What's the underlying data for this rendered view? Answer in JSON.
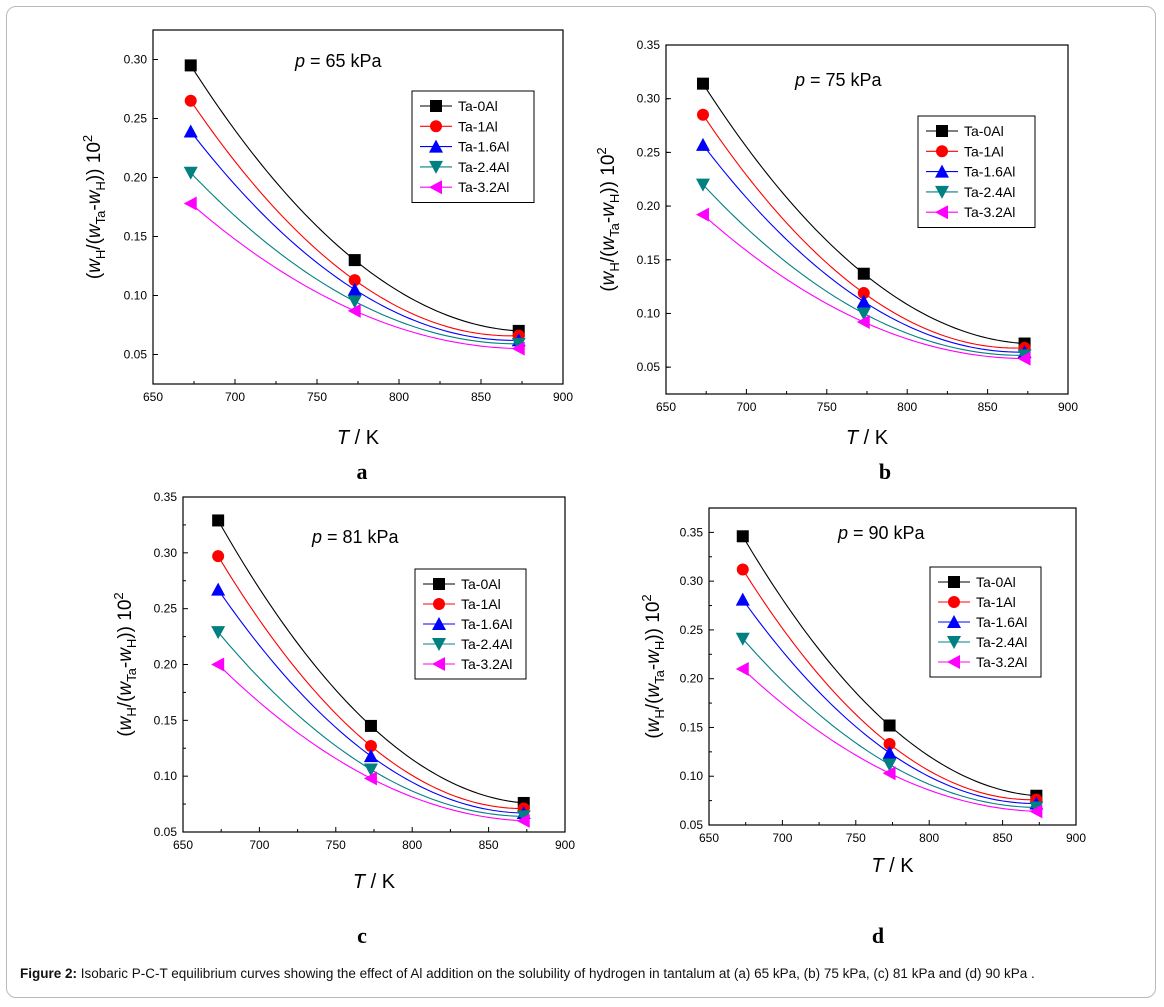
{
  "caption": {
    "label": "Figure 2:",
    "text": " Isobaric P-C-T equilibrium curves showing the effect of Al addition on the solubility of hydrogen in tantalum at (a) 65 kPa, (b) 75 kPa, (c) 81 kPa and (d) 90 kPa ."
  },
  "colors": {
    "Ta-0Al": "#000000",
    "Ta-1Al": "#ff0000",
    "Ta-1.6Al": "#0000ff",
    "Ta-2.4Al": "#008080",
    "Ta-3.2Al": "#ff00ff"
  },
  "chart_data": [
    {
      "type": "line",
      "panel": "a",
      "title_p": "p",
      "title_rest": " = 65 kPa",
      "xlabel_var": "T",
      "xlabel_unit": " / K",
      "ylabel_parts": [
        "(w",
        "H",
        "/(w",
        "Ta",
        "-w",
        "H",
        ")) 10",
        "2"
      ],
      "xlim": [
        650,
        900
      ],
      "ylim": [
        0.025,
        0.325
      ],
      "xticks": [
        "650",
        "700",
        "750",
        "800",
        "850",
        "900"
      ],
      "yticks": [
        "0.05",
        "0.10",
        "0.15",
        "0.20",
        "0.25",
        "0.30"
      ],
      "x": [
        673,
        773,
        873
      ],
      "series": [
        {
          "name": "Ta-0Al",
          "marker": "square",
          "values": [
            0.295,
            0.13,
            0.07
          ]
        },
        {
          "name": "Ta-1Al",
          "marker": "circle",
          "values": [
            0.265,
            0.113,
            0.066
          ]
        },
        {
          "name": "Ta-1.6Al",
          "marker": "triangle-up",
          "values": [
            0.239,
            0.105,
            0.062
          ]
        },
        {
          "name": "Ta-2.4Al",
          "marker": "triangle-down",
          "values": [
            0.204,
            0.095,
            0.059
          ]
        },
        {
          "name": "Ta-3.2Al",
          "marker": "triangle-left",
          "values": [
            0.178,
            0.087,
            0.055
          ]
        }
      ],
      "legend": "top-right"
    },
    {
      "type": "line",
      "panel": "b",
      "title_p": "p",
      "title_rest": " = 75 kPa",
      "xlabel_var": "T",
      "xlabel_unit": " / K",
      "ylabel_parts": [
        "(w",
        "H",
        "/(w",
        "Ta",
        "-w",
        "H",
        ")) 10",
        "2"
      ],
      "xlim": [
        650,
        900
      ],
      "ylim": [
        0.025,
        0.35
      ],
      "xticks": [
        "650",
        "700",
        "750",
        "800",
        "850",
        "900"
      ],
      "yticks": [
        "0.05",
        "0.10",
        "0.15",
        "0.20",
        "0.25",
        "0.30",
        "0.35"
      ],
      "x": [
        673,
        773,
        873
      ],
      "series": [
        {
          "name": "Ta-0Al",
          "marker": "square",
          "values": [
            0.314,
            0.137,
            0.072
          ]
        },
        {
          "name": "Ta-1Al",
          "marker": "circle",
          "values": [
            0.285,
            0.119,
            0.068
          ]
        },
        {
          "name": "Ta-1.6Al",
          "marker": "triangle-up",
          "values": [
            0.257,
            0.111,
            0.064
          ]
        },
        {
          "name": "Ta-2.4Al",
          "marker": "triangle-down",
          "values": [
            0.22,
            0.1,
            0.061
          ]
        },
        {
          "name": "Ta-3.2Al",
          "marker": "triangle-left",
          "values": [
            0.192,
            0.092,
            0.058
          ]
        }
      ],
      "legend": "top-right"
    },
    {
      "type": "line",
      "panel": "c",
      "title_p": "p",
      "title_rest": " = 81 kPa",
      "xlabel_var": "T",
      "xlabel_unit": " / K",
      "ylabel_parts": [
        "(w",
        "H",
        "/(w",
        "Ta",
        "-w",
        "H",
        ")) 10",
        "2"
      ],
      "xlim": [
        650,
        900
      ],
      "ylim": [
        0.05,
        0.35
      ],
      "xticks": [
        "650",
        "700",
        "750",
        "800",
        "850",
        "900"
      ],
      "yticks": [
        "0.05",
        "0.10",
        "0.15",
        "0.20",
        "0.25",
        "0.30",
        "0.35"
      ],
      "x": [
        673,
        773,
        873
      ],
      "series": [
        {
          "name": "Ta-0Al",
          "marker": "square",
          "values": [
            0.329,
            0.145,
            0.076
          ]
        },
        {
          "name": "Ta-1Al",
          "marker": "circle",
          "values": [
            0.297,
            0.127,
            0.071
          ]
        },
        {
          "name": "Ta-1.6Al",
          "marker": "triangle-up",
          "values": [
            0.267,
            0.118,
            0.067
          ]
        },
        {
          "name": "Ta-2.4Al",
          "marker": "triangle-down",
          "values": [
            0.229,
            0.106,
            0.064
          ]
        },
        {
          "name": "Ta-3.2Al",
          "marker": "triangle-left",
          "values": [
            0.2,
            0.098,
            0.06
          ]
        }
      ],
      "legend": "top-right"
    },
    {
      "type": "line",
      "panel": "d",
      "title_p": "p",
      "title_rest": " = 90 kPa",
      "xlabel_var": "T",
      "xlabel_unit": " / K",
      "ylabel_parts": [
        "(w",
        "H",
        "/(w",
        "Ta",
        "-w",
        "H",
        ")) 10",
        "2"
      ],
      "xlim": [
        650,
        900
      ],
      "ylim": [
        0.05,
        0.375
      ],
      "xticks": [
        "650",
        "700",
        "750",
        "800",
        "850",
        "900"
      ],
      "yticks": [
        "0.05",
        "0.10",
        "0.15",
        "0.20",
        "0.25",
        "0.30",
        "0.35"
      ],
      "x": [
        673,
        773,
        873
      ],
      "series": [
        {
          "name": "Ta-0Al",
          "marker": "square",
          "values": [
            0.346,
            0.152,
            0.08
          ]
        },
        {
          "name": "Ta-1Al",
          "marker": "circle",
          "values": [
            0.312,
            0.133,
            0.076
          ]
        },
        {
          "name": "Ta-1.6Al",
          "marker": "triangle-up",
          "values": [
            0.281,
            0.124,
            0.072
          ]
        },
        {
          "name": "Ta-2.4Al",
          "marker": "triangle-down",
          "values": [
            0.241,
            0.112,
            0.068
          ]
        },
        {
          "name": "Ta-3.2Al",
          "marker": "triangle-left",
          "values": [
            0.21,
            0.103,
            0.064
          ]
        }
      ],
      "legend": "top-right"
    }
  ]
}
